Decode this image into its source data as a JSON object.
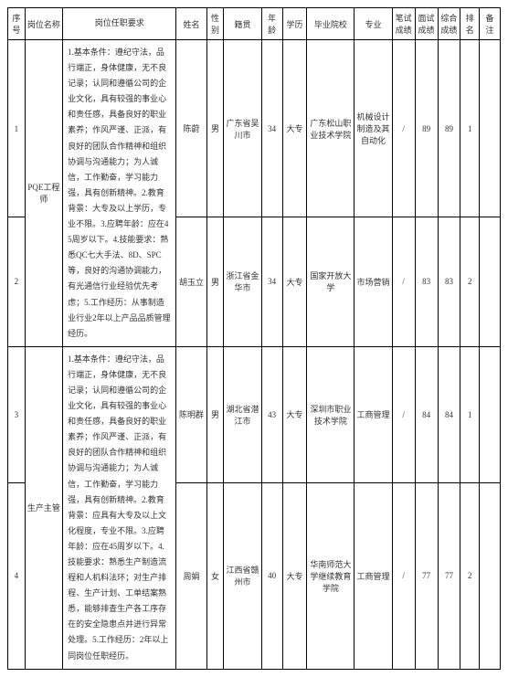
{
  "headers": {
    "seq": "序号",
    "position": "岗位名称",
    "requirements": "岗位任职要求",
    "name": "姓名",
    "gender": "性别",
    "native": "籍贯",
    "age": "年龄",
    "edu": "学历",
    "school": "毕业院校",
    "major": "专业",
    "written": "笔试成绩",
    "interview": "面试成绩",
    "total": "综合成绩",
    "rank": "排名",
    "remark": "备注"
  },
  "positions": [
    {
      "name": "PQE工程师",
      "req1": "1.基本条件：遵纪守法，品行端正，身体健康，无不良记录；认同和遵循公司的企业文化，具有较强的事业心和责任感，具备良好的职业素养；作风严谨、正派，有良好的团队合作精神和组织协调与沟通能力；为人诚信，工作勤奋，学习能力强，具有创新精神。2.教育背景：大专及以上学历，专业不限。3.应聘年龄：应在45周岁以下。4.技能要求：熟悉QC七大手法、8D、SPC等，良好的沟通协调能力，有光通信行业经验优先考虑；5.工作经历：从事制造业行业2年以上产品品质管理经历。",
      "rows": [
        {
          "seq": "1",
          "name": "陈蔚",
          "gender": "男",
          "native": "广东省吴川市",
          "age": "34",
          "edu": "大专",
          "school": "广东松山职业技术学院",
          "major": "机械设计制造及其自动化",
          "written": "/",
          "interview": "89",
          "total": "89",
          "rank": "1",
          "remark": ""
        },
        {
          "seq": "2",
          "name": "胡玉立",
          "gender": "男",
          "native": "浙江省金华市",
          "age": "34",
          "edu": "大专",
          "school": "国家开放大学",
          "major": "市场营销",
          "written": "/",
          "interview": "83",
          "total": "83",
          "rank": "2",
          "remark": ""
        }
      ]
    },
    {
      "name": "生产主管",
      "req1": "1.基本条件：遵纪守法，品行端正，身体健康，无不良记录；认同和遵循公司的企业文化，具有较强的事业心和责任感，具备良好的职业素养；作风严谨、正派，有良好的团队合作精神和组织协调与沟通能力；为人诚信，工作勤奋，学习能力强，具有创新精神。2.教育背景：应具有大专及以上文化程度，专业不限。3.应聘年龄：应在45周岁以下。4.技能要求：熟悉生产制造流程和人机料法环；对生产排程、生产计划、工单结案熟悉，能够排查生产各工序存在的安全隐患点并进行异常处理。5.工作经历：2年以上同岗位任职经历。",
      "rows": [
        {
          "seq": "3",
          "name": "陈明群",
          "gender": "男",
          "native": "湖北省潜江市",
          "age": "43",
          "edu": "大专",
          "school": "深圳市职业技术学院",
          "major": "工商管理",
          "written": "/",
          "interview": "84",
          "total": "84",
          "rank": "1",
          "remark": ""
        },
        {
          "seq": "4",
          "name": "周娟",
          "gender": "女",
          "native": "江西省赣州市",
          "age": "40",
          "edu": "大专",
          "school": "华南师范大学继续教育学院",
          "major": "工商管理",
          "written": "/",
          "interview": "77",
          "total": "77",
          "rank": "2",
          "remark": ""
        }
      ]
    }
  ]
}
